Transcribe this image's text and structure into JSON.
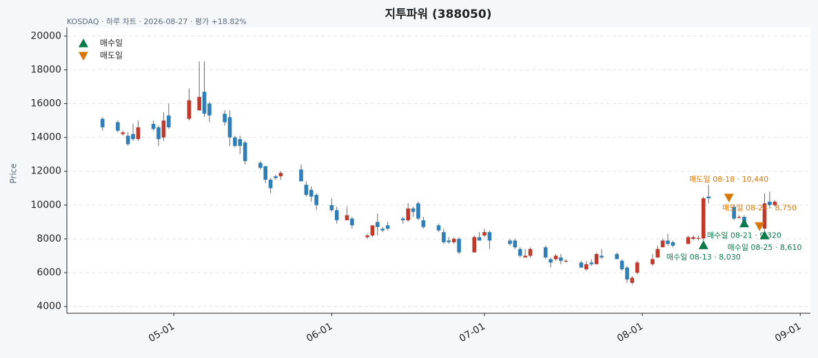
{
  "chart_data": {
    "type": "candlestick",
    "title": "지투파워 (388050)",
    "subtitle": "KOSDAQ · 하루 차트 · 2026-08-27 · 평가 +18.82%",
    "y_label": "Price",
    "x": [
      "2026-04-17",
      "2026-04-20",
      "2026-04-21",
      "2026-04-22",
      "2026-04-23",
      "2026-04-24",
      "2026-04-27",
      "2026-04-28",
      "2026-04-29",
      "2026-04-30",
      "2026-05-04",
      "2026-05-06",
      "2026-05-07",
      "2026-05-08",
      "2026-05-11",
      "2026-05-12",
      "2026-05-13",
      "2026-05-14",
      "2026-05-15",
      "2026-05-18",
      "2026-05-19",
      "2026-05-20",
      "2026-05-21",
      "2026-05-22",
      "2026-05-26",
      "2026-05-27",
      "2026-05-28",
      "2026-05-29",
      "2026-06-01",
      "2026-06-02",
      "2026-06-04",
      "2026-06-05",
      "2026-06-08",
      "2026-06-09",
      "2026-06-10",
      "2026-06-11",
      "2026-06-12",
      "2026-06-15",
      "2026-06-16",
      "2026-06-17",
      "2026-06-18",
      "2026-06-19",
      "2026-06-22",
      "2026-06-23",
      "2026-06-24",
      "2026-06-25",
      "2026-06-26",
      "2026-06-29",
      "2026-06-30",
      "2026-07-01",
      "2026-07-02",
      "2026-07-06",
      "2026-07-07",
      "2026-07-08",
      "2026-07-09",
      "2026-07-10",
      "2026-07-13",
      "2026-07-14",
      "2026-07-15",
      "2026-07-16",
      "2026-07-17",
      "2026-07-20",
      "2026-07-21",
      "2026-07-22",
      "2026-07-23",
      "2026-07-24",
      "2026-07-27",
      "2026-07-28",
      "2026-07-29",
      "2026-07-30",
      "2026-07-31",
      "2026-08-03",
      "2026-08-04",
      "2026-08-05",
      "2026-08-06",
      "2026-08-07",
      "2026-08-10",
      "2026-08-11",
      "2026-08-12",
      "2026-08-13",
      "2026-08-14",
      "2026-08-19",
      "2026-08-20",
      "2026-08-21",
      "2026-08-24",
      "2026-08-25",
      "2026-08-26",
      "2026-08-27"
    ],
    "open": [
      15100,
      14900,
      14200,
      14100,
      14200,
      13900,
      14800,
      14600,
      14000,
      15300,
      15100,
      15600,
      16700,
      16000,
      15400,
      15200,
      14000,
      13900,
      13700,
      12500,
      12300,
      11500,
      11700,
      11700,
      12100,
      11200,
      10900,
      10600,
      10000,
      9700,
      9100,
      9200,
      8100,
      8200,
      9000,
      8600,
      8800,
      9200,
      9100,
      9800,
      10100,
      9100,
      8800,
      8400,
      7900,
      7800,
      8000,
      7200,
      8100,
      8200,
      8400,
      7900,
      7900,
      7400,
      6900,
      7000,
      7500,
      6800,
      6800,
      6900,
      6700,
      6600,
      6200,
      6600,
      6500,
      7000,
      7100,
      6700,
      6300,
      5400,
      6000,
      6500,
      6900,
      7500,
      7900,
      7800,
      7700,
      8000,
      8050,
      8030,
      10500,
      9900,
      9300,
      9300,
      8700,
      8610,
      10200,
      10000
    ],
    "high": [
      15200,
      15000,
      14400,
      14300,
      14800,
      15000,
      15000,
      14700,
      15500,
      16000,
      16900,
      18500,
      18500,
      16100,
      15600,
      15600,
      14100,
      14100,
      13800,
      12600,
      12300,
      11600,
      11800,
      12000,
      12400,
      11400,
      11100,
      10700,
      10400,
      9900,
      9900,
      9300,
      8300,
      8800,
      9500,
      8700,
      9000,
      9300,
      10100,
      9900,
      10200,
      9300,
      8900,
      8600,
      8100,
      8100,
      8100,
      8200,
      8400,
      8600,
      8500,
      8000,
      8000,
      7500,
      7400,
      7500,
      7600,
      6900,
      7100,
      7100,
      6800,
      6700,
      6700,
      6800,
      7200,
      7400,
      7200,
      6800,
      6400,
      5800,
      6700,
      7100,
      7600,
      8000,
      8300,
      7900,
      8200,
      8200,
      8200,
      10500,
      11200,
      10000,
      9400,
      9400,
      8900,
      10700,
      10800,
      10300
    ],
    "low": [
      14400,
      14300,
      14100,
      13500,
      13800,
      13800,
      14400,
      13500,
      13800,
      14500,
      15000,
      15600,
      15200,
      14900,
      14700,
      13500,
      13400,
      13000,
      12400,
      12100,
      11300,
      10700,
      11500,
      11500,
      11400,
      10500,
      10200,
      9700,
      9600,
      8900,
      9100,
      8600,
      8000,
      8100,
      8200,
      8400,
      8500,
      8900,
      9000,
      9300,
      9100,
      8600,
      8400,
      7700,
      7700,
      7700,
      7100,
      7200,
      7900,
      8100,
      7400,
      7600,
      7400,
      6900,
      6900,
      6900,
      6800,
      6300,
      6700,
      6500,
      6600,
      6300,
      6100,
      6400,
      6500,
      6800,
      6800,
      6100,
      5400,
      5300,
      5900,
      6400,
      6900,
      7500,
      7600,
      7500,
      7700,
      7900,
      7900,
      7900,
      10100,
      9100,
      9200,
      8700,
      8600,
      8500,
      9800,
      9900
    ],
    "close": [
      14600,
      14400,
      14300,
      13600,
      13900,
      14600,
      14500,
      13900,
      15000,
      14600,
      16200,
      16400,
      15400,
      15300,
      14900,
      14000,
      13500,
      13500,
      12600,
      12200,
      11500,
      11000,
      11600,
      11900,
      11400,
      10600,
      10500,
      10000,
      9700,
      9100,
      9400,
      8800,
      8200,
      8800,
      8700,
      8500,
      8600,
      9100,
      9800,
      9600,
      9200,
      8700,
      8500,
      7800,
      7800,
      8000,
      7200,
      8100,
      7900,
      8400,
      7900,
      7700,
      7500,
      7000,
      7000,
      7400,
      6900,
      6600,
      7000,
      6700,
      6700,
      6300,
      6500,
      6500,
      7100,
      6900,
      6800,
      6200,
      5600,
      5700,
      6600,
      6800,
      7400,
      7900,
      7700,
      7600,
      8100,
      8100,
      8050,
      10400,
      10400,
      9200,
      9300,
      8800,
      8700,
      10100,
      10000,
      10200
    ],
    "up_color": "#c0392b",
    "down_color": "#2e7fb8",
    "xlim": [
      "2026-04-10",
      "2026-09-03"
    ],
    "xticks": [
      {
        "value": "2026-05-01",
        "label": "05-01"
      },
      {
        "value": "2026-06-01",
        "label": "06-01"
      },
      {
        "value": "2026-07-01",
        "label": "07-01"
      },
      {
        "value": "2026-08-01",
        "label": "08-01"
      },
      {
        "value": "2026-09-01",
        "label": "09-01"
      }
    ],
    "ylim": [
      3600,
      20500
    ],
    "yticks": [
      4000,
      6000,
      8000,
      10000,
      12000,
      14000,
      16000,
      18000,
      20000
    ],
    "grid": true,
    "legend": "upper left",
    "signals": [
      {
        "name": "매수일",
        "color": "#0b7a4b",
        "marker": "up",
        "points": [
          {
            "x": "2026-08-13",
            "y": 8030,
            "label": "매수일 08-13 · 8,030"
          },
          {
            "x": "2026-08-21",
            "y": 9320,
            "label": "매수일 08-21 · 9,320"
          },
          {
            "x": "2026-08-25",
            "y": 8610,
            "label": "매수일 08-25 · 8,610"
          }
        ]
      },
      {
        "name": "매도일",
        "color": "#d97706",
        "marker": "down",
        "points": [
          {
            "x": "2026-08-18",
            "y": 10440,
            "label": "매도일 08-18 · 10,440"
          },
          {
            "x": "2026-08-24",
            "y": 8750,
            "label": "매도일 08-24 · 8,750"
          }
        ]
      }
    ]
  }
}
